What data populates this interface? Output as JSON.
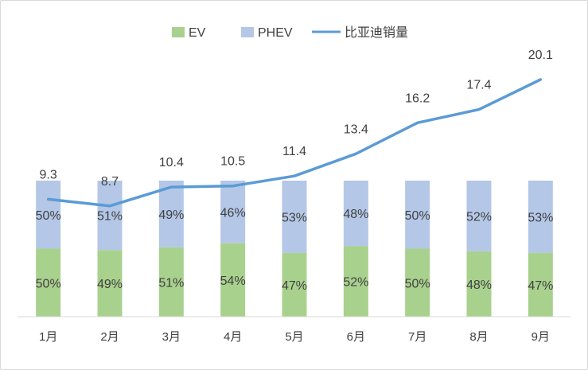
{
  "chart_data": {
    "type": "bar",
    "stacked": true,
    "percent_stacked": true,
    "categories": [
      "1月",
      "2月",
      "3月",
      "4月",
      "5月",
      "6月",
      "7月",
      "8月",
      "9月"
    ],
    "series": [
      {
        "name": "EV",
        "type": "bar",
        "color": "#a9d18e",
        "values": [
          50,
          49,
          51,
          54,
          47,
          52,
          50,
          48,
          47
        ],
        "labels": [
          "50%",
          "49%",
          "51%",
          "54%",
          "47%",
          "52%",
          "50%",
          "48%",
          "47%"
        ]
      },
      {
        "name": "PHEV",
        "type": "bar",
        "color": "#b4c7e7",
        "values": [
          50,
          51,
          49,
          46,
          53,
          48,
          50,
          52,
          53
        ],
        "labels": [
          "50%",
          "51%",
          "49%",
          "46%",
          "53%",
          "48%",
          "50%",
          "52%",
          "53%"
        ]
      },
      {
        "name": "比亚迪销量",
        "type": "line",
        "color": "#5b9bd5",
        "values": [
          9.3,
          8.7,
          10.4,
          10.5,
          11.4,
          13.4,
          16.2,
          17.4,
          20.1
        ],
        "labels": [
          "9.3",
          "8.7",
          "10.4",
          "10.5",
          "11.4",
          "13.4",
          "16.2",
          "17.4",
          "20.1"
        ]
      }
    ],
    "legend_position": "top",
    "grid": false,
    "title": "",
    "xlabel": "",
    "ylabel": ""
  }
}
